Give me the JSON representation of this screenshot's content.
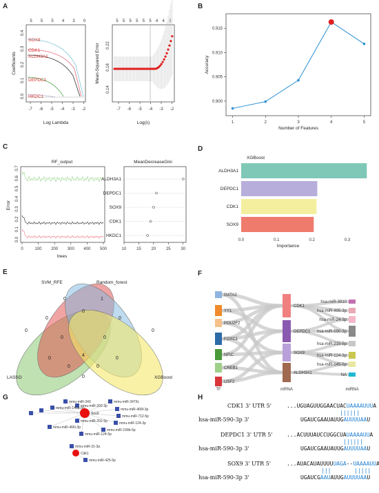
{
  "panels": {
    "A": "A",
    "B": "B",
    "C": "C",
    "D": "D",
    "E": "E",
    "F": "F",
    "G": "G",
    "H": "H"
  },
  "panelA": {
    "left": {
      "top_ticks": [
        "5",
        "5",
        "5",
        "4",
        "3",
        "0"
      ],
      "ylabel": "Coefficients",
      "xlabel": "Log Lambda",
      "x_ticks": [
        "-7",
        "-6",
        "-5",
        "-4",
        "-3",
        "-2"
      ],
      "y_ticks": [
        "0.4",
        "0.3",
        "0.2",
        "0.1",
        "0.0"
      ],
      "genes": [
        "SOX9",
        "CDK1",
        "ALDH3A1",
        "DEPDC1",
        "HKDC1"
      ]
    },
    "right": {
      "top_ticks": [
        "5",
        "5",
        "5",
        "5",
        "5",
        "5",
        "4",
        "4",
        "3"
      ],
      "ylabel": "Mean-Squared Error",
      "xlabel": "Log(λ)",
      "x_ticks": [
        "-7",
        "-6",
        "-5",
        "-4",
        "-3",
        "-2"
      ],
      "y_ticks": [
        "0.14",
        "0.18",
        "0.22"
      ]
    }
  },
  "chart_data": [
    {
      "panel": "B",
      "type": "line",
      "x": [
        1,
        2,
        3,
        4,
        5
      ],
      "y": [
        0.8985,
        0.8999,
        0.9043,
        0.9163,
        0.9118
      ],
      "highlight_x": 4,
      "xlabel": "Number of Features",
      "ylabel": "Accuracy",
      "xlim": [
        0.8,
        5.2
      ],
      "ylim": [
        0.897,
        0.918
      ],
      "y_ticks": [
        0.9,
        0.905,
        0.91,
        0.915
      ],
      "y_tick_labels": [
        "0.900",
        "0.905",
        "0.910",
        "0.915"
      ],
      "color": "#2a8fd4"
    },
    {
      "panel": "C-right",
      "type": "scatter",
      "title": "MeanDecreaseGini",
      "categories": [
        "ALDH3A1",
        "DEPDC1",
        "SOX9",
        "CDK1",
        "HKDC1"
      ],
      "values": [
        30,
        21,
        20,
        19,
        18
      ],
      "xlim": [
        10,
        31
      ],
      "x_ticks": [
        "10",
        "15",
        "20",
        "25",
        "30"
      ]
    },
    {
      "panel": "D",
      "type": "bar",
      "title": "XGBoost",
      "categories": [
        "ALDH3A1",
        "DEPDC1",
        "CDK1",
        "SOX9"
      ],
      "values": [
        0.355,
        0.215,
        0.213,
        0.205
      ],
      "colors": [
        "#7fc8b8",
        "#b7aedb",
        "#f4ef9f",
        "#ef7b6d"
      ],
      "xlabel": "Importance",
      "xlim": [
        0,
        0.37
      ],
      "x_ticks": [
        "0.0",
        "0.1",
        "0.2",
        "0.3"
      ]
    }
  ],
  "panelC": {
    "left_title": "RF_output",
    "ylabel": "Error",
    "xlabel": "trees",
    "x_ticks": [
      "0",
      "100",
      "200",
      "300",
      "400",
      "500"
    ],
    "y_ticks": [
      "0.0",
      "0.1",
      "0.2",
      "0.3",
      "0.4",
      "0.5",
      "0.6",
      "0.7"
    ]
  },
  "panelE": {
    "sets": [
      "SVM_RFE",
      "Random_forest",
      "LASSO",
      "XGBoost"
    ],
    "regions": [
      "0",
      "1",
      "0",
      "0",
      "0",
      "0",
      "0",
      "0",
      "0",
      "4",
      "0",
      "0",
      "0",
      "0",
      "0"
    ]
  },
  "panelF": {
    "tf": [
      "GATA2",
      "YY1",
      "POU2F2",
      "FOXC1",
      "NFIC",
      "CREB1",
      "USF2"
    ],
    "mrna": [
      "CDK1",
      "DEPDC1",
      "SOX9",
      "ALDH3A1"
    ],
    "mirna": [
      "hsa-miR-3910",
      "hsa-miR-495-3p",
      "hsa-miR-24-3p",
      "hsa-miR-590-3p",
      "hsa-miR-215-5p",
      "hsa-miR-124-3p",
      "hsa-miR-145-5p",
      "NA"
    ],
    "axis": [
      "TF",
      "mRNA",
      "miRNA"
    ],
    "tf_colors": [
      "#8fb4e0",
      "#f08a2a",
      "#f5c08a",
      "#2d6aa8",
      "#4a9a3a",
      "#9fd08a",
      "#d8363a"
    ],
    "mirna_colors": [
      "#c070b0",
      "#e8a8b8",
      "#f4b8c8",
      "#8a8a8a",
      "#c8c8c8",
      "#c8c850",
      "#e8e8a0",
      "#20b8d0"
    ]
  },
  "panelG": {
    "hub1": "Sox9",
    "hub2": "Cdk1",
    "sox9_targets": [
      "mmu-miR-343",
      "mmu-miR-3473c",
      "mmu-miR-202-3p",
      "mmu-miR-466f-3p",
      "mmu-miR-145a-5p",
      "mmu-miR-712-5p",
      "mmu-miR-202-5p",
      "mmu-miR-124-3p",
      "mmu-miR-466i-3p",
      "mmu-miR-199b-5p",
      "mmu-miR-124-5p"
    ],
    "cdk1_targets": [
      "mmu-miR-31-3p",
      "mmu-miR-425-5p"
    ]
  },
  "panelH": {
    "pairs": [
      {
        "gene": "CDK1 3' UTR 5'",
        "gene_seq_pre": "...UGUAGUUGGAACUAC",
        "gene_seq_hl": "UAAAAUUU",
        "gene_seq_post": "A",
        "bars": "||||||",
        "mir": "hsa-miR-590-3p 3'",
        "mir_seq_pre": "UGAUCGAAUAUUG",
        "mir_seq_hl": "AUUUUAA",
        "mir_seq_post": "U"
      },
      {
        "gene": "DEPDC1 3' UTR 5'",
        "gene_seq_pre": "...ACUUUAUCCUGGCUA",
        "gene_seq_hl": "UAAAAUU",
        "gene_seq_post": "A",
        "bars": "||||||",
        "mir": "hsa-miR-590-3p 3'",
        "mir_seq_pre": "UGAUCGAAUAUUG",
        "mir_seq_hl": "AUUUUAA",
        "mir_seq_post": "U"
      },
      {
        "gene": "SOX9 3' UTR 5'",
        "gene_seq_pre": "...AUACAUAUUUU",
        "gene_seq_hl": "UAGA",
        "gene_seq_mid": "--",
        "gene_seq_hl2": "UAAAAUU",
        "gene_seq_post": "A",
        "bars": "|||       |||||",
        "mir": "hsa-miR-590-3p 3'",
        "mir_seq_pre": "UGAUCG",
        "mir_seq_hl": "AAU",
        "mir_seq_mid": "AUUG",
        "mir_seq_hl2": "AUUUUAA",
        "mir_seq_post": "U"
      }
    ]
  }
}
